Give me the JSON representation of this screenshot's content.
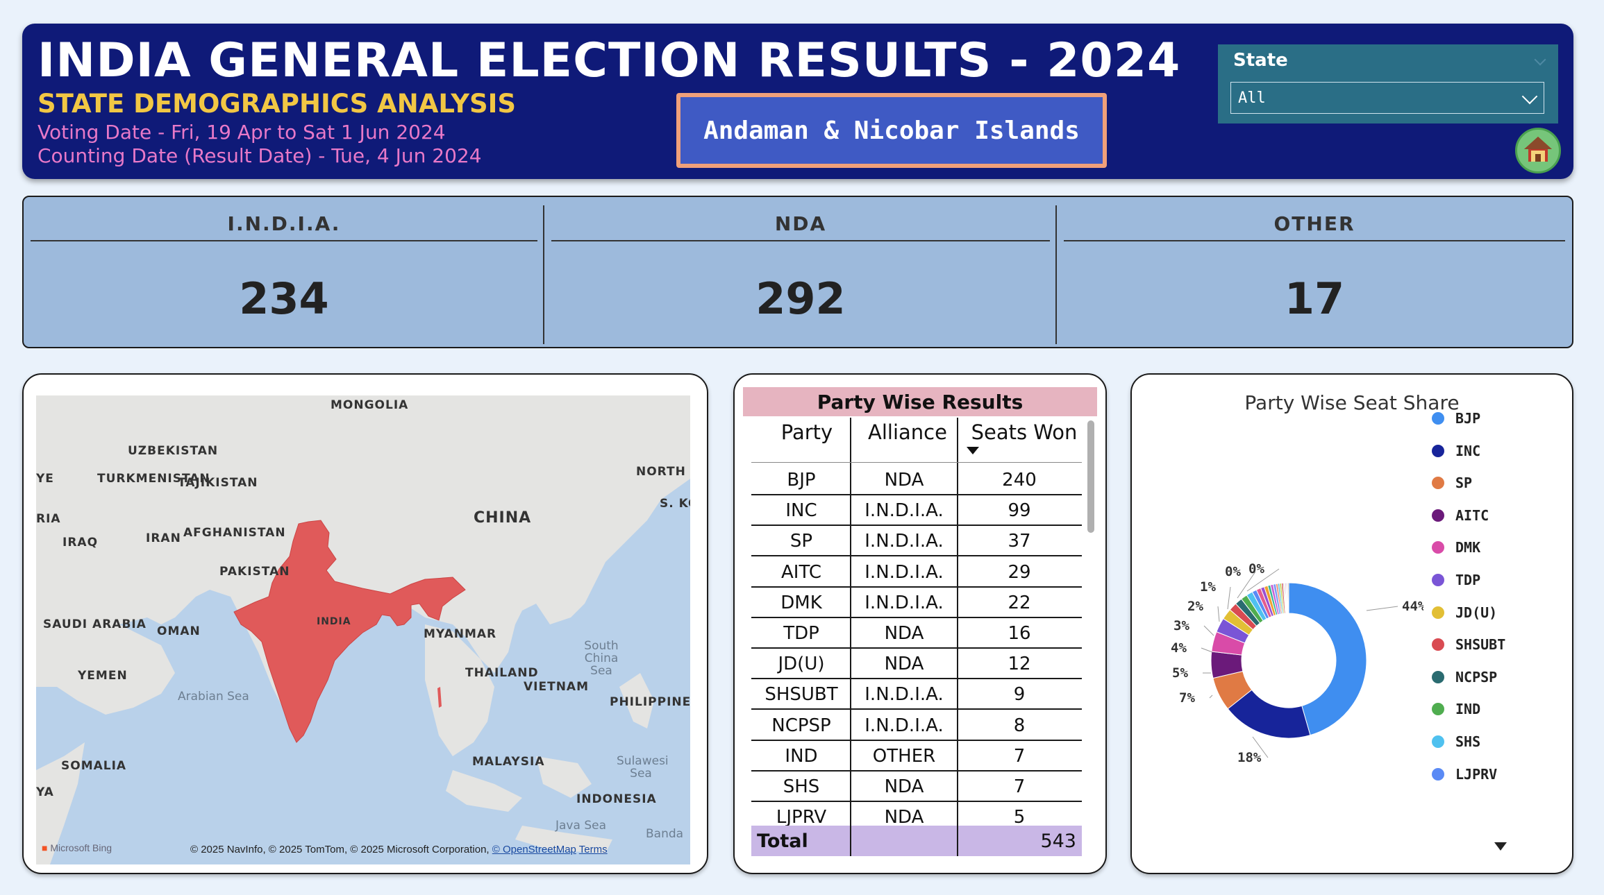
{
  "header": {
    "title": "INDIA GENERAL ELECTION RESULTS - 2024",
    "subtitle": "STATE DEMOGRAPHICS ANALYSIS",
    "voting_date": "Voting Date - Fri, 19 Apr to Sat 1 Jun 2024",
    "counting_date": "Counting Date (Result Date) - Tue, 4 Jun 2024",
    "selected_state": "Andaman & Nicobar Islands"
  },
  "slicer": {
    "label": "State",
    "value": "All"
  },
  "icons": {
    "home": "home-icon",
    "dropdown": "chevron-down-icon",
    "sort": "sort-desc-icon"
  },
  "kpis": [
    {
      "label": "I.N.D.I.A.",
      "value": "234"
    },
    {
      "label": "NDA",
      "value": "292"
    },
    {
      "label": "OTHER",
      "value": "17"
    }
  ],
  "map": {
    "labels": [
      "MONGOLIA",
      "UZBEKISTAN",
      "TURKMENISTAN",
      "TAJIKISTAN",
      "NORTH",
      "S. KO",
      "YE",
      "RIA",
      "IRAQ",
      "IRAN",
      "AFGHANISTAN",
      "CHINA",
      "PAKISTAN",
      "INDIA",
      "SAUDI ARABIA",
      "OMAN",
      "MYANMAR",
      "YEMEN",
      "THAILAND",
      "VIETNAM",
      "PHILIPPINE",
      "SOMALIA",
      "MALAYSIA",
      "YA",
      "INDONESIA"
    ],
    "seas": [
      "South China Sea",
      "Arabian Sea",
      "Sulawesi Sea",
      "Java Sea",
      "Banda"
    ],
    "copyright": "© 2025 NavInfo, © 2025 TomTom, © 2025 Microsoft Corporation,",
    "osm_link": "© OpenStreetMap",
    "terms_link": "Terms",
    "brand": "Microsoft Bing",
    "highlight_color": "#e05a5a"
  },
  "party_table": {
    "title": "Party Wise Results",
    "columns": [
      "Party",
      "Alliance",
      "Seats Won"
    ],
    "rows": [
      [
        "BJP",
        "NDA",
        "240"
      ],
      [
        "INC",
        "I.N.D.I.A.",
        "99"
      ],
      [
        "SP",
        "I.N.D.I.A.",
        "37"
      ],
      [
        "AITC",
        "I.N.D.I.A.",
        "29"
      ],
      [
        "DMK",
        "I.N.D.I.A.",
        "22"
      ],
      [
        "TDP",
        "NDA",
        "16"
      ],
      [
        "JD(U)",
        "NDA",
        "12"
      ],
      [
        "SHSUBT",
        "I.N.D.I.A.",
        "9"
      ],
      [
        "NCPSP",
        "I.N.D.I.A.",
        "8"
      ],
      [
        "IND",
        "OTHER",
        "7"
      ],
      [
        "SHS",
        "NDA",
        "7"
      ],
      [
        "LJPRV",
        "NDA",
        "5"
      ]
    ],
    "total_label": "Total",
    "total_value": "543"
  },
  "chart_data": {
    "type": "pie",
    "title": "Party Wise Seat Share",
    "donut": true,
    "legend_position": "right",
    "categories": [
      "BJP",
      "INC",
      "SP",
      "AITC",
      "DMK",
      "TDP",
      "JD(U)",
      "SHSUBT",
      "NCPSP",
      "IND",
      "SHS",
      "LJPRV"
    ],
    "legend_colors": [
      "#3f8ef0",
      "#17249a",
      "#e07a44",
      "#6b1a7a",
      "#d94ba8",
      "#7a55d6",
      "#e2bf35",
      "#d94b52",
      "#2a6b70",
      "#4fad4f",
      "#4fc1ef",
      "#5a8af5"
    ],
    "slice_labels": [
      "44%",
      "18%",
      "7%",
      "5%",
      "4%",
      "3%",
      "2%",
      "1%",
      "0%",
      "0%"
    ],
    "slices": [
      {
        "name": "BJP",
        "value": 240
      },
      {
        "name": "INC",
        "value": 99
      },
      {
        "name": "SP",
        "value": 37
      },
      {
        "name": "AITC",
        "value": 29
      },
      {
        "name": "DMK",
        "value": 22
      },
      {
        "name": "TDP",
        "value": 16
      },
      {
        "name": "JD(U)",
        "value": 12
      },
      {
        "name": "SHSUBT",
        "value": 9
      },
      {
        "name": "NCPSP",
        "value": 8
      },
      {
        "name": "IND",
        "value": 7
      },
      {
        "name": "SHS",
        "value": 7
      },
      {
        "name": "LJPRV",
        "value": 5
      },
      {
        "name": "",
        "value": 5
      },
      {
        "name": "",
        "value": 4
      },
      {
        "name": "",
        "value": 4
      },
      {
        "name": "",
        "value": 3
      },
      {
        "name": "",
        "value": 3
      },
      {
        "name": "",
        "value": 3
      },
      {
        "name": "",
        "value": 2
      },
      {
        "name": "",
        "value": 2
      },
      {
        "name": "",
        "value": 2
      },
      {
        "name": "",
        "value": 2
      },
      {
        "name": "",
        "value": 1
      },
      {
        "name": "",
        "value": 1
      },
      {
        "name": "",
        "value": 1
      },
      {
        "name": "",
        "value": 1
      },
      {
        "name": "",
        "value": 1
      },
      {
        "name": "",
        "value": 1
      }
    ]
  }
}
